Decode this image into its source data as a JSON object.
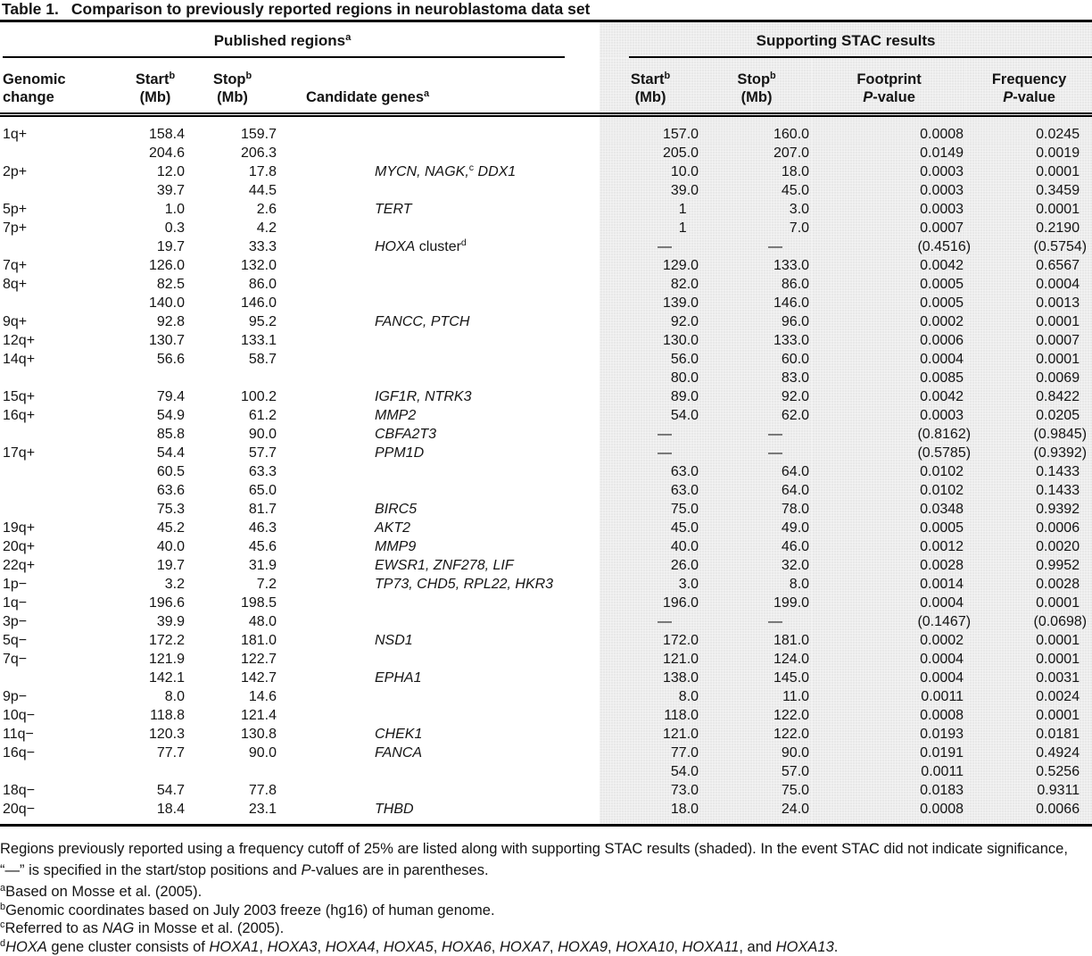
{
  "title": {
    "label": "Table 1.",
    "text": "Comparison to previously reported regions in neuroblastoma data set"
  },
  "groups": {
    "published": {
      "segments": [
        {
          "t": "Published regions"
        },
        {
          "t": "a",
          "sup": 1
        }
      ]
    },
    "stac": {
      "segments": [
        {
          "t": "Supporting STAC results"
        }
      ]
    }
  },
  "columns": [
    {
      "id": "genomic-change",
      "cls": "c1",
      "lines": [
        [
          {
            "t": "Genomic"
          }
        ],
        [
          {
            "t": "change"
          }
        ]
      ]
    },
    {
      "id": "published-start",
      "cls": "c2",
      "lines": [
        [
          {
            "t": "Start"
          },
          {
            "t": "b",
            "sup": 1
          }
        ],
        [
          {
            "t": "(Mb)"
          }
        ]
      ]
    },
    {
      "id": "published-stop",
      "cls": "c3",
      "lines": [
        [
          {
            "t": "Stop"
          },
          {
            "t": "b",
            "sup": 1
          }
        ],
        [
          {
            "t": "(Mb)"
          }
        ]
      ]
    },
    {
      "id": "candidate-genes",
      "cls": "c4",
      "lines": [
        [
          {
            "t": "Candidate genes"
          },
          {
            "t": "a",
            "sup": 1
          }
        ]
      ]
    },
    {
      "id": "stac-start",
      "cls": "c5 shade",
      "lines": [
        [
          {
            "t": "Start"
          },
          {
            "t": "b",
            "sup": 1
          }
        ],
        [
          {
            "t": "(Mb)"
          }
        ]
      ]
    },
    {
      "id": "stac-stop",
      "cls": "c6 shade",
      "lines": [
        [
          {
            "t": "Stop"
          },
          {
            "t": "b",
            "sup": 1
          }
        ],
        [
          {
            "t": "(Mb)"
          }
        ]
      ]
    },
    {
      "id": "footprint-pvalue",
      "cls": "c7 shade",
      "lines": [
        [
          {
            "t": "Footprint"
          }
        ],
        [
          {
            "t": "P",
            "i": 1
          },
          {
            "t": "-value"
          }
        ]
      ]
    },
    {
      "id": "frequency-pvalue",
      "cls": "c8 shade",
      "lines": [
        [
          {
            "t": "Frequency"
          }
        ],
        [
          {
            "t": "P",
            "i": 1
          },
          {
            "t": "-value"
          }
        ]
      ]
    }
  ],
  "rows": [
    {
      "c": "1q+",
      "ps": "158.4",
      "pe": "159.7",
      "ss": "157.0",
      "se": "160.0",
      "fp": "0.0008",
      "fq": "0.0245"
    },
    {
      "ps": "204.6",
      "pe": "206.3",
      "ss": "205.0",
      "se": "207.0",
      "fp": "0.0149",
      "fq": "0.0019"
    },
    {
      "c": "2p+",
      "ps": "12.0",
      "pe": "17.8",
      "g": [
        {
          "t": "MYCN, NAGK,",
          "i": 1
        },
        {
          "t": "c",
          "sup": 1
        },
        {
          "t": " DDX1",
          "i": 1
        }
      ],
      "ss": "10.0",
      "se": "18.0",
      "fp": "0.0003",
      "fq": "0.0001"
    },
    {
      "ps": "39.7",
      "pe": "44.5",
      "ss": "39.0",
      "se": "45.0",
      "fp": "0.0003",
      "fq": "0.3459"
    },
    {
      "c": "5p+",
      "ps": "1.0",
      "pe": "2.6",
      "g": [
        {
          "t": "TERT",
          "i": 1
        }
      ],
      "ss": "1",
      "se": "3.0",
      "fp": "0.0003",
      "fq": "0.0001"
    },
    {
      "c": "7p+",
      "ps": "0.3",
      "pe": "4.2",
      "ss": "1",
      "se": "7.0",
      "fp": "0.0007",
      "fq": "0.2190"
    },
    {
      "ps": "19.7",
      "pe": "33.3",
      "g": [
        {
          "t": "HOXA",
          "i": 1
        },
        {
          "t": " cluster"
        },
        {
          "t": "d",
          "sup": 1
        }
      ],
      "ss": "—",
      "se": "—",
      "fp": "(0.4516)",
      "fq": "(0.5754)"
    },
    {
      "c": "7q+",
      "ps": "126.0",
      "pe": "132.0",
      "ss": "129.0",
      "se": "133.0",
      "fp": "0.0042",
      "fq": "0.6567"
    },
    {
      "c": "8q+",
      "ps": "82.5",
      "pe": "86.0",
      "ss": "82.0",
      "se": "86.0",
      "fp": "0.0005",
      "fq": "0.0004"
    },
    {
      "ps": "140.0",
      "pe": "146.0",
      "ss": "139.0",
      "se": "146.0",
      "fp": "0.0005",
      "fq": "0.0013"
    },
    {
      "c": "9q+",
      "ps": "92.8",
      "pe": "95.2",
      "g": [
        {
          "t": "FANCC, PTCH",
          "i": 1
        }
      ],
      "ss": "92.0",
      "se": "96.0",
      "fp": "0.0002",
      "fq": "0.0001"
    },
    {
      "c": "12q+",
      "ps": "130.7",
      "pe": "133.1",
      "ss": "130.0",
      "se": "133.0",
      "fp": "0.0006",
      "fq": "0.0007"
    },
    {
      "c": "14q+",
      "ps": "56.6",
      "pe": "58.7",
      "ss": "56.0",
      "se": "60.0",
      "fp": "0.0004",
      "fq": "0.0001"
    },
    {
      "ss": "80.0",
      "se": "83.0",
      "fp": "0.0085",
      "fq": "0.0069"
    },
    {
      "c": "15q+",
      "ps": "79.4",
      "pe": "100.2",
      "g": [
        {
          "t": "IGF1R, NTRK3",
          "i": 1
        }
      ],
      "ss": "89.0",
      "se": "92.0",
      "fp": "0.0042",
      "fq": "0.8422"
    },
    {
      "c": "16q+",
      "ps": "54.9",
      "pe": "61.2",
      "g": [
        {
          "t": "MMP2",
          "i": 1
        }
      ],
      "ss": "54.0",
      "se": "62.0",
      "fp": "0.0003",
      "fq": "0.0205"
    },
    {
      "ps": "85.8",
      "pe": "90.0",
      "g": [
        {
          "t": "CBFA2T3",
          "i": 1
        }
      ],
      "ss": "—",
      "se": "—",
      "fp": "(0.8162)",
      "fq": "(0.9845)"
    },
    {
      "c": "17q+",
      "ps": "54.4",
      "pe": "57.7",
      "g": [
        {
          "t": "PPM1D",
          "i": 1
        }
      ],
      "ss": "—",
      "se": "—",
      "fp": "(0.5785)",
      "fq": "(0.9392)"
    },
    {
      "ps": "60.5",
      "pe": "63.3",
      "ss": "63.0",
      "se": "64.0",
      "fp": "0.0102",
      "fq": "0.1433"
    },
    {
      "ps": "63.6",
      "pe": "65.0",
      "ss": "63.0",
      "se": "64.0",
      "fp": "0.0102",
      "fq": "0.1433"
    },
    {
      "ps": "75.3",
      "pe": "81.7",
      "g": [
        {
          "t": "BIRC5",
          "i": 1
        }
      ],
      "ss": "75.0",
      "se": "78.0",
      "fp": "0.0348",
      "fq": "0.9392"
    },
    {
      "c": "19q+",
      "ps": "45.2",
      "pe": "46.3",
      "g": [
        {
          "t": "AKT2",
          "i": 1
        }
      ],
      "ss": "45.0",
      "se": "49.0",
      "fp": "0.0005",
      "fq": "0.0006"
    },
    {
      "c": "20q+",
      "ps": "40.0",
      "pe": "45.6",
      "g": [
        {
          "t": "MMP9",
          "i": 1
        }
      ],
      "ss": "40.0",
      "se": "46.0",
      "fp": "0.0012",
      "fq": "0.0020"
    },
    {
      "c": "22q+",
      "ps": "19.7",
      "pe": "31.9",
      "g": [
        {
          "t": "EWSR1, ZNF278, LIF",
          "i": 1
        }
      ],
      "ss": "26.0",
      "se": "32.0",
      "fp": "0.0028",
      "fq": "0.9952"
    },
    {
      "c": "1p−",
      "ps": "3.2",
      "pe": "7.2",
      "g": [
        {
          "t": "TP73, CHD5, RPL22, HKR3",
          "i": 1
        }
      ],
      "ss": "3.0",
      "se": "8.0",
      "fp": "0.0014",
      "fq": "0.0028"
    },
    {
      "c": "1q−",
      "ps": "196.6",
      "pe": "198.5",
      "ss": "196.0",
      "se": "199.0",
      "fp": "0.0004",
      "fq": "0.0001"
    },
    {
      "c": "3p−",
      "ps": "39.9",
      "pe": "48.0",
      "ss": "—",
      "se": "—",
      "fp": "(0.1467)",
      "fq": "(0.0698)"
    },
    {
      "c": "5q−",
      "ps": "172.2",
      "pe": "181.0",
      "g": [
        {
          "t": "NSD1",
          "i": 1
        }
      ],
      "ss": "172.0",
      "se": "181.0",
      "fp": "0.0002",
      "fq": "0.0001"
    },
    {
      "c": "7q−",
      "ps": "121.9",
      "pe": "122.7",
      "ss": "121.0",
      "se": "124.0",
      "fp": "0.0004",
      "fq": "0.0001"
    },
    {
      "ps": "142.1",
      "pe": "142.7",
      "g": [
        {
          "t": "EPHA1",
          "i": 1
        }
      ],
      "ss": "138.0",
      "se": "145.0",
      "fp": "0.0004",
      "fq": "0.0031"
    },
    {
      "c": "9p−",
      "ps": "8.0",
      "pe": "14.6",
      "ss": "8.0",
      "se": "11.0",
      "fp": "0.0011",
      "fq": "0.0024"
    },
    {
      "c": "10q−",
      "ps": "118.8",
      "pe": "121.4",
      "ss": "118.0",
      "se": "122.0",
      "fp": "0.0008",
      "fq": "0.0001"
    },
    {
      "c": "11q−",
      "ps": "120.3",
      "pe": "130.8",
      "g": [
        {
          "t": "CHEK1",
          "i": 1
        }
      ],
      "ss": "121.0",
      "se": "122.0",
      "fp": "0.0193",
      "fq": "0.0181"
    },
    {
      "c": "16q−",
      "ps": "77.7",
      "pe": "90.0",
      "g": [
        {
          "t": "FANCA",
          "i": 1
        }
      ],
      "ss": "77.0",
      "se": "90.0",
      "fp": "0.0191",
      "fq": "0.4924"
    },
    {
      "ss": "54.0",
      "se": "57.0",
      "fp": "0.0011",
      "fq": "0.5256"
    },
    {
      "c": "18q−",
      "ps": "54.7",
      "pe": "77.8",
      "ss": "73.0",
      "se": "75.0",
      "fp": "0.0183",
      "fq": "0.9311"
    },
    {
      "c": "20q−",
      "ps": "18.4",
      "pe": "23.1",
      "g": [
        {
          "t": "THBD",
          "i": 1
        }
      ],
      "ss": "18.0",
      "se": "24.0",
      "fp": "0.0008",
      "fq": "0.0066"
    }
  ],
  "footnotes": [
    {
      "name": "general-note",
      "main": 1,
      "segments": [
        {
          "t": "Regions previously reported using a frequency cutoff of 25% are listed along with supporting STAC results (shaded). In the event STAC did not indicate significance, “—” is specified in the start/stop positions and "
        },
        {
          "t": "P",
          "i": 1
        },
        {
          "t": "-values are in parentheses."
        }
      ]
    },
    {
      "name": "footnote-a",
      "segments": [
        {
          "t": "a",
          "sup": 1
        },
        {
          "t": "Based on Mosse et al. (2005)."
        }
      ]
    },
    {
      "name": "footnote-b",
      "segments": [
        {
          "t": "b",
          "sup": 1
        },
        {
          "t": "Genomic coordinates based on July 2003 freeze (hg16) of human genome."
        }
      ]
    },
    {
      "name": "footnote-c",
      "segments": [
        {
          "t": "c",
          "sup": 1
        },
        {
          "t": "Referred to as "
        },
        {
          "t": "NAG",
          "i": 1
        },
        {
          "t": " in Mosse et al. (2005)."
        }
      ]
    },
    {
      "name": "footnote-d",
      "segments": [
        {
          "t": "d",
          "sup": 1
        },
        {
          "t": "HOXA",
          "i": 1
        },
        {
          "t": " gene cluster consists of "
        },
        {
          "t": "HOXA1",
          "i": 1
        },
        {
          "t": ", "
        },
        {
          "t": "HOXA3",
          "i": 1
        },
        {
          "t": ", "
        },
        {
          "t": "HOXA4",
          "i": 1
        },
        {
          "t": ", "
        },
        {
          "t": "HOXA5",
          "i": 1
        },
        {
          "t": ", "
        },
        {
          "t": "HOXA6",
          "i": 1
        },
        {
          "t": ", "
        },
        {
          "t": "HOXA7",
          "i": 1
        },
        {
          "t": ", "
        },
        {
          "t": "HOXA9",
          "i": 1
        },
        {
          "t": ", "
        },
        {
          "t": "HOXA10",
          "i": 1
        },
        {
          "t": ", "
        },
        {
          "t": "HOXA11",
          "i": 1
        },
        {
          "t": ", and "
        },
        {
          "t": "HOXA13",
          "i": 1
        },
        {
          "t": "."
        }
      ]
    }
  ]
}
